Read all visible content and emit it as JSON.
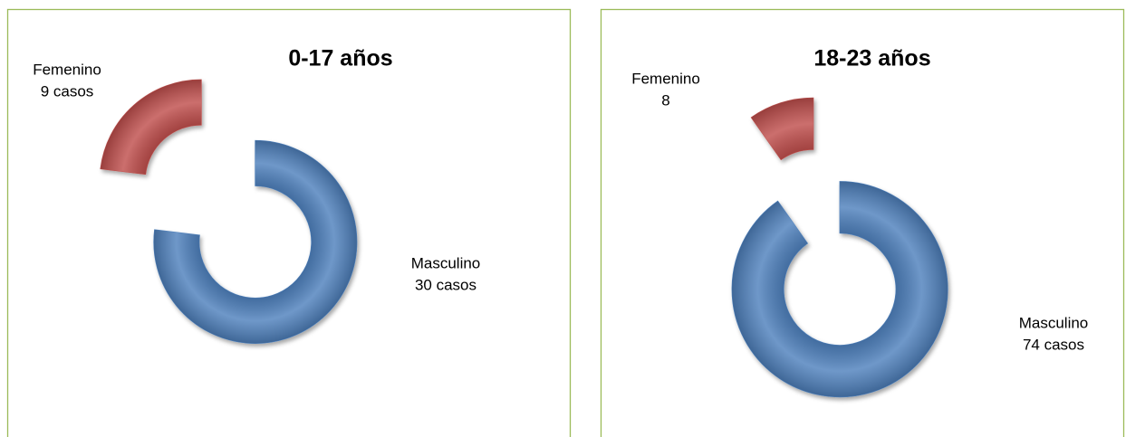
{
  "chart_data": [
    {
      "type": "doughnut",
      "title": "0-17 años",
      "categories": [
        "Masculino",
        "Femenino"
      ],
      "values": [
        30,
        9
      ],
      "value_labels": [
        "30 casos",
        "9 casos"
      ],
      "colors": [
        "#4f81bd",
        "#c0504d"
      ]
    },
    {
      "type": "doughnut",
      "title": "18-23 años",
      "categories": [
        "Masculino",
        "Femenino"
      ],
      "values": [
        74,
        8
      ],
      "value_labels": [
        "74 casos",
        "8"
      ],
      "colors": [
        "#4f81bd",
        "#c0504d"
      ]
    }
  ]
}
